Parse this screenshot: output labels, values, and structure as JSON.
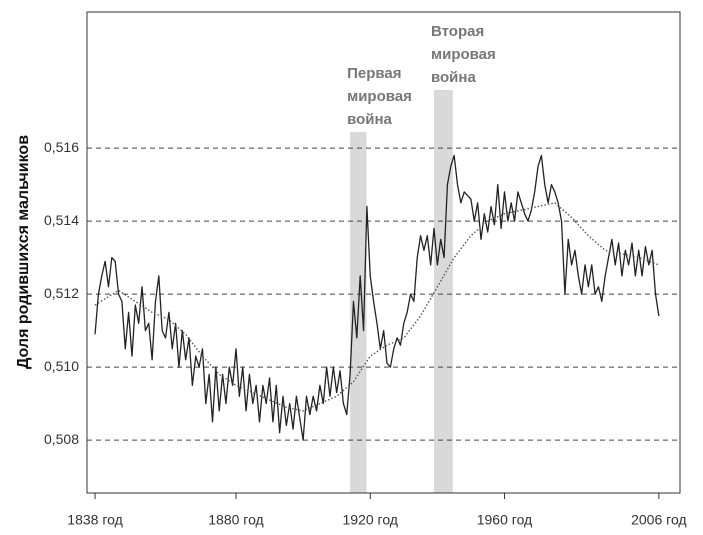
{
  "chart_data": {
    "type": "line",
    "y_label": "Доля родившихся мальчиков",
    "xlim": [
      1835.6,
      2012.3
    ],
    "xticks": [
      {
        "value": 1838,
        "label": "1838 год"
      },
      {
        "value": 1880,
        "label": "1880 год"
      },
      {
        "value": 1920,
        "label": "1920 год"
      },
      {
        "value": 1960,
        "label": "1960 год"
      },
      {
        "value": 2006,
        "label": "2006 год"
      }
    ],
    "ylim": [
      0.50655,
      0.51973
    ],
    "yticks": [
      {
        "value": 0.508,
        "label": "0,508"
      },
      {
        "value": 0.51,
        "label": "0,510"
      },
      {
        "value": 0.512,
        "label": "0,512"
      },
      {
        "value": 0.514,
        "label": "0,514"
      },
      {
        "value": 0.516,
        "label": "0,516"
      }
    ],
    "grid": true,
    "events": [
      {
        "label": [
          "Первая",
          "мировая",
          "война"
        ],
        "start": 1914,
        "end": 1918.9,
        "color": "#d9d9d9"
      },
      {
        "label": [
          "Вторая",
          "мировая",
          "война"
        ],
        "start": 1939,
        "end": 1944.6,
        "color": "#d9d9d9"
      }
    ],
    "series": [
      {
        "color": "#222",
        "style": "solid",
        "x": [
          1838,
          1839,
          1840,
          1841,
          1842,
          1843,
          1844,
          1845,
          1846,
          1847,
          1848,
          1849,
          1850,
          1851,
          1852,
          1853,
          1854,
          1855,
          1856,
          1857,
          1858,
          1859,
          1860,
          1861,
          1862,
          1863,
          1864,
          1865,
          1866,
          1867,
          1868,
          1869,
          1870,
          1871,
          1872,
          1873,
          1874,
          1875,
          1876,
          1877,
          1878,
          1879,
          1880,
          1881,
          1882,
          1883,
          1884,
          1885,
          1886,
          1887,
          1888,
          1889,
          1890,
          1891,
          1892,
          1893,
          1894,
          1895,
          1896,
          1897,
          1898,
          1899,
          1900,
          1901,
          1902,
          1903,
          1904,
          1905,
          1906,
          1907,
          1908,
          1909,
          1910,
          1911,
          1912,
          1913,
          1914,
          1915,
          1916,
          1917,
          1918,
          1919,
          1920,
          1921,
          1922,
          1923,
          1924,
          1925,
          1926,
          1927,
          1928,
          1929,
          1930,
          1931,
          1932,
          1933,
          1934,
          1935,
          1936,
          1937,
          1938,
          1939,
          1940,
          1941,
          1942,
          1943,
          1944,
          1945,
          1946,
          1947,
          1948,
          1949,
          1950,
          1951,
          1952,
          1953,
          1954,
          1955,
          1956,
          1957,
          1958,
          1959,
          1960,
          1961,
          1962,
          1963,
          1964,
          1965,
          1966,
          1967,
          1968,
          1969,
          1970,
          1971,
          1972,
          1973,
          1974,
          1975,
          1976,
          1977,
          1978,
          1979,
          1980,
          1981,
          1982,
          1983,
          1984,
          1985,
          1986,
          1987,
          1988,
          1989,
          1990,
          1991,
          1992,
          1993,
          1994,
          1995,
          1996,
          1997,
          1998,
          1999,
          2000,
          2001,
          2002,
          2003,
          2004,
          2005,
          2006
        ],
        "values": [
          0.5109,
          0.512,
          0.5125,
          0.5129,
          0.5122,
          0.513,
          0.5129,
          0.512,
          0.5118,
          0.5105,
          0.5115,
          0.5103,
          0.5117,
          0.5112,
          0.5122,
          0.511,
          0.5112,
          0.5102,
          0.5118,
          0.5125,
          0.511,
          0.5108,
          0.5115,
          0.5105,
          0.5112,
          0.51,
          0.511,
          0.5102,
          0.5108,
          0.5095,
          0.5103,
          0.51,
          0.5105,
          0.509,
          0.5098,
          0.5085,
          0.51,
          0.5088,
          0.5098,
          0.509,
          0.51,
          0.5095,
          0.5105,
          0.5092,
          0.51,
          0.5088,
          0.5098,
          0.509,
          0.5095,
          0.5085,
          0.5095,
          0.509,
          0.5097,
          0.5085,
          0.5095,
          0.5082,
          0.5092,
          0.5084,
          0.509,
          0.5083,
          0.5092,
          0.5086,
          0.508,
          0.5092,
          0.5087,
          0.5092,
          0.5088,
          0.5095,
          0.509,
          0.51,
          0.5092,
          0.51,
          0.5093,
          0.5099,
          0.509,
          0.5087,
          0.5098,
          0.5118,
          0.5108,
          0.5125,
          0.511,
          0.5144,
          0.5125,
          0.5118,
          0.5112,
          0.5105,
          0.511,
          0.5101,
          0.51,
          0.5105,
          0.5108,
          0.5106,
          0.5112,
          0.5115,
          0.512,
          0.5118,
          0.513,
          0.5136,
          0.5132,
          0.5136,
          0.5128,
          0.5138,
          0.5128,
          0.5135,
          0.513,
          0.515,
          0.5155,
          0.5158,
          0.515,
          0.5145,
          0.5148,
          0.5147,
          0.5146,
          0.514,
          0.5145,
          0.5135,
          0.5142,
          0.5137,
          0.5144,
          0.5139,
          0.515,
          0.5138,
          0.5148,
          0.514,
          0.5145,
          0.514,
          0.5148,
          0.5145,
          0.5142,
          0.514,
          0.5143,
          0.5148,
          0.5155,
          0.5158,
          0.515,
          0.5145,
          0.515,
          0.5148,
          0.5145,
          0.514,
          0.512,
          0.5135,
          0.5128,
          0.5132,
          0.5125,
          0.512,
          0.5128,
          0.5122,
          0.5128,
          0.512,
          0.5122,
          0.5118,
          0.5125,
          0.513,
          0.5135,
          0.5128,
          0.5134,
          0.5125,
          0.5132,
          0.5128,
          0.5134,
          0.5125,
          0.5132,
          0.5125,
          0.5133,
          0.5128,
          0.5132,
          0.512,
          0.5114
        ]
      },
      {
        "color": "#555",
        "style": "dotted",
        "x": [
          1838,
          1845,
          1850,
          1855,
          1860,
          1865,
          1870,
          1875,
          1880,
          1885,
          1890,
          1895,
          1900,
          1905,
          1910,
          1915,
          1920,
          1925,
          1930,
          1935,
          1940,
          1945,
          1950,
          1955,
          1960,
          1965,
          1970,
          1975,
          1980,
          1985,
          1990,
          1995,
          2000,
          2006
        ],
        "values": [
          0.5117,
          0.5121,
          0.5118,
          0.5115,
          0.5113,
          0.5109,
          0.5103,
          0.5098,
          0.5095,
          0.5093,
          0.5091,
          0.5089,
          0.5088,
          0.509,
          0.5092,
          0.5096,
          0.5103,
          0.5106,
          0.5108,
          0.5114,
          0.5122,
          0.513,
          0.5136,
          0.514,
          0.5142,
          0.5143,
          0.5144,
          0.5145,
          0.5141,
          0.5136,
          0.5132,
          0.5131,
          0.513,
          0.5128
        ]
      }
    ]
  }
}
